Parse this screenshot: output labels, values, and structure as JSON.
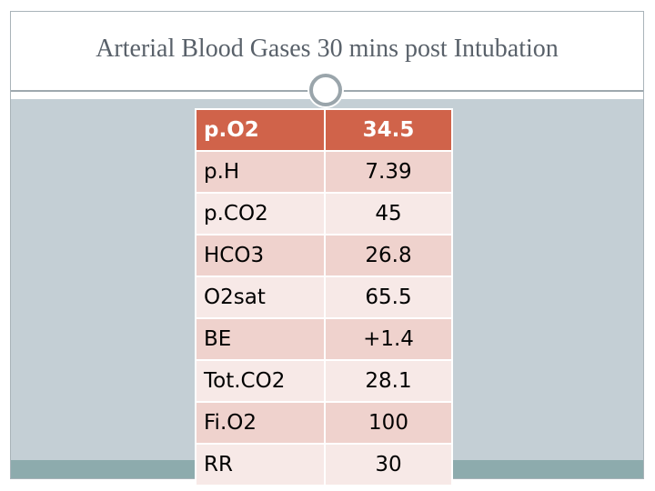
{
  "slide": {
    "title": "Arterial Blood Gases 30 mins post Intubation"
  },
  "table": {
    "rows": [
      {
        "label": "p.O2",
        "value": "34.5"
      },
      {
        "label": "p.H",
        "value": "7.39"
      },
      {
        "label": "p.CO2",
        "value": "45"
      },
      {
        "label": "HCO3",
        "value": "26.8"
      },
      {
        "label": "O2sat",
        "value": "65.5"
      },
      {
        "label": "BE",
        "value": "+1.4"
      },
      {
        "label": "Tot.CO2",
        "value": "28.1"
      },
      {
        "label": "Fi.O2",
        "value": "100"
      },
      {
        "label": "RR",
        "value": "30"
      }
    ]
  },
  "colors": {
    "header_fill": "#d0634a",
    "row_band_dark": "#efd2cd",
    "row_band_light": "#f7e9e7",
    "body_background": "#c4cfd5",
    "footer_bar": "#8dabad",
    "title_text": "#59616a"
  }
}
